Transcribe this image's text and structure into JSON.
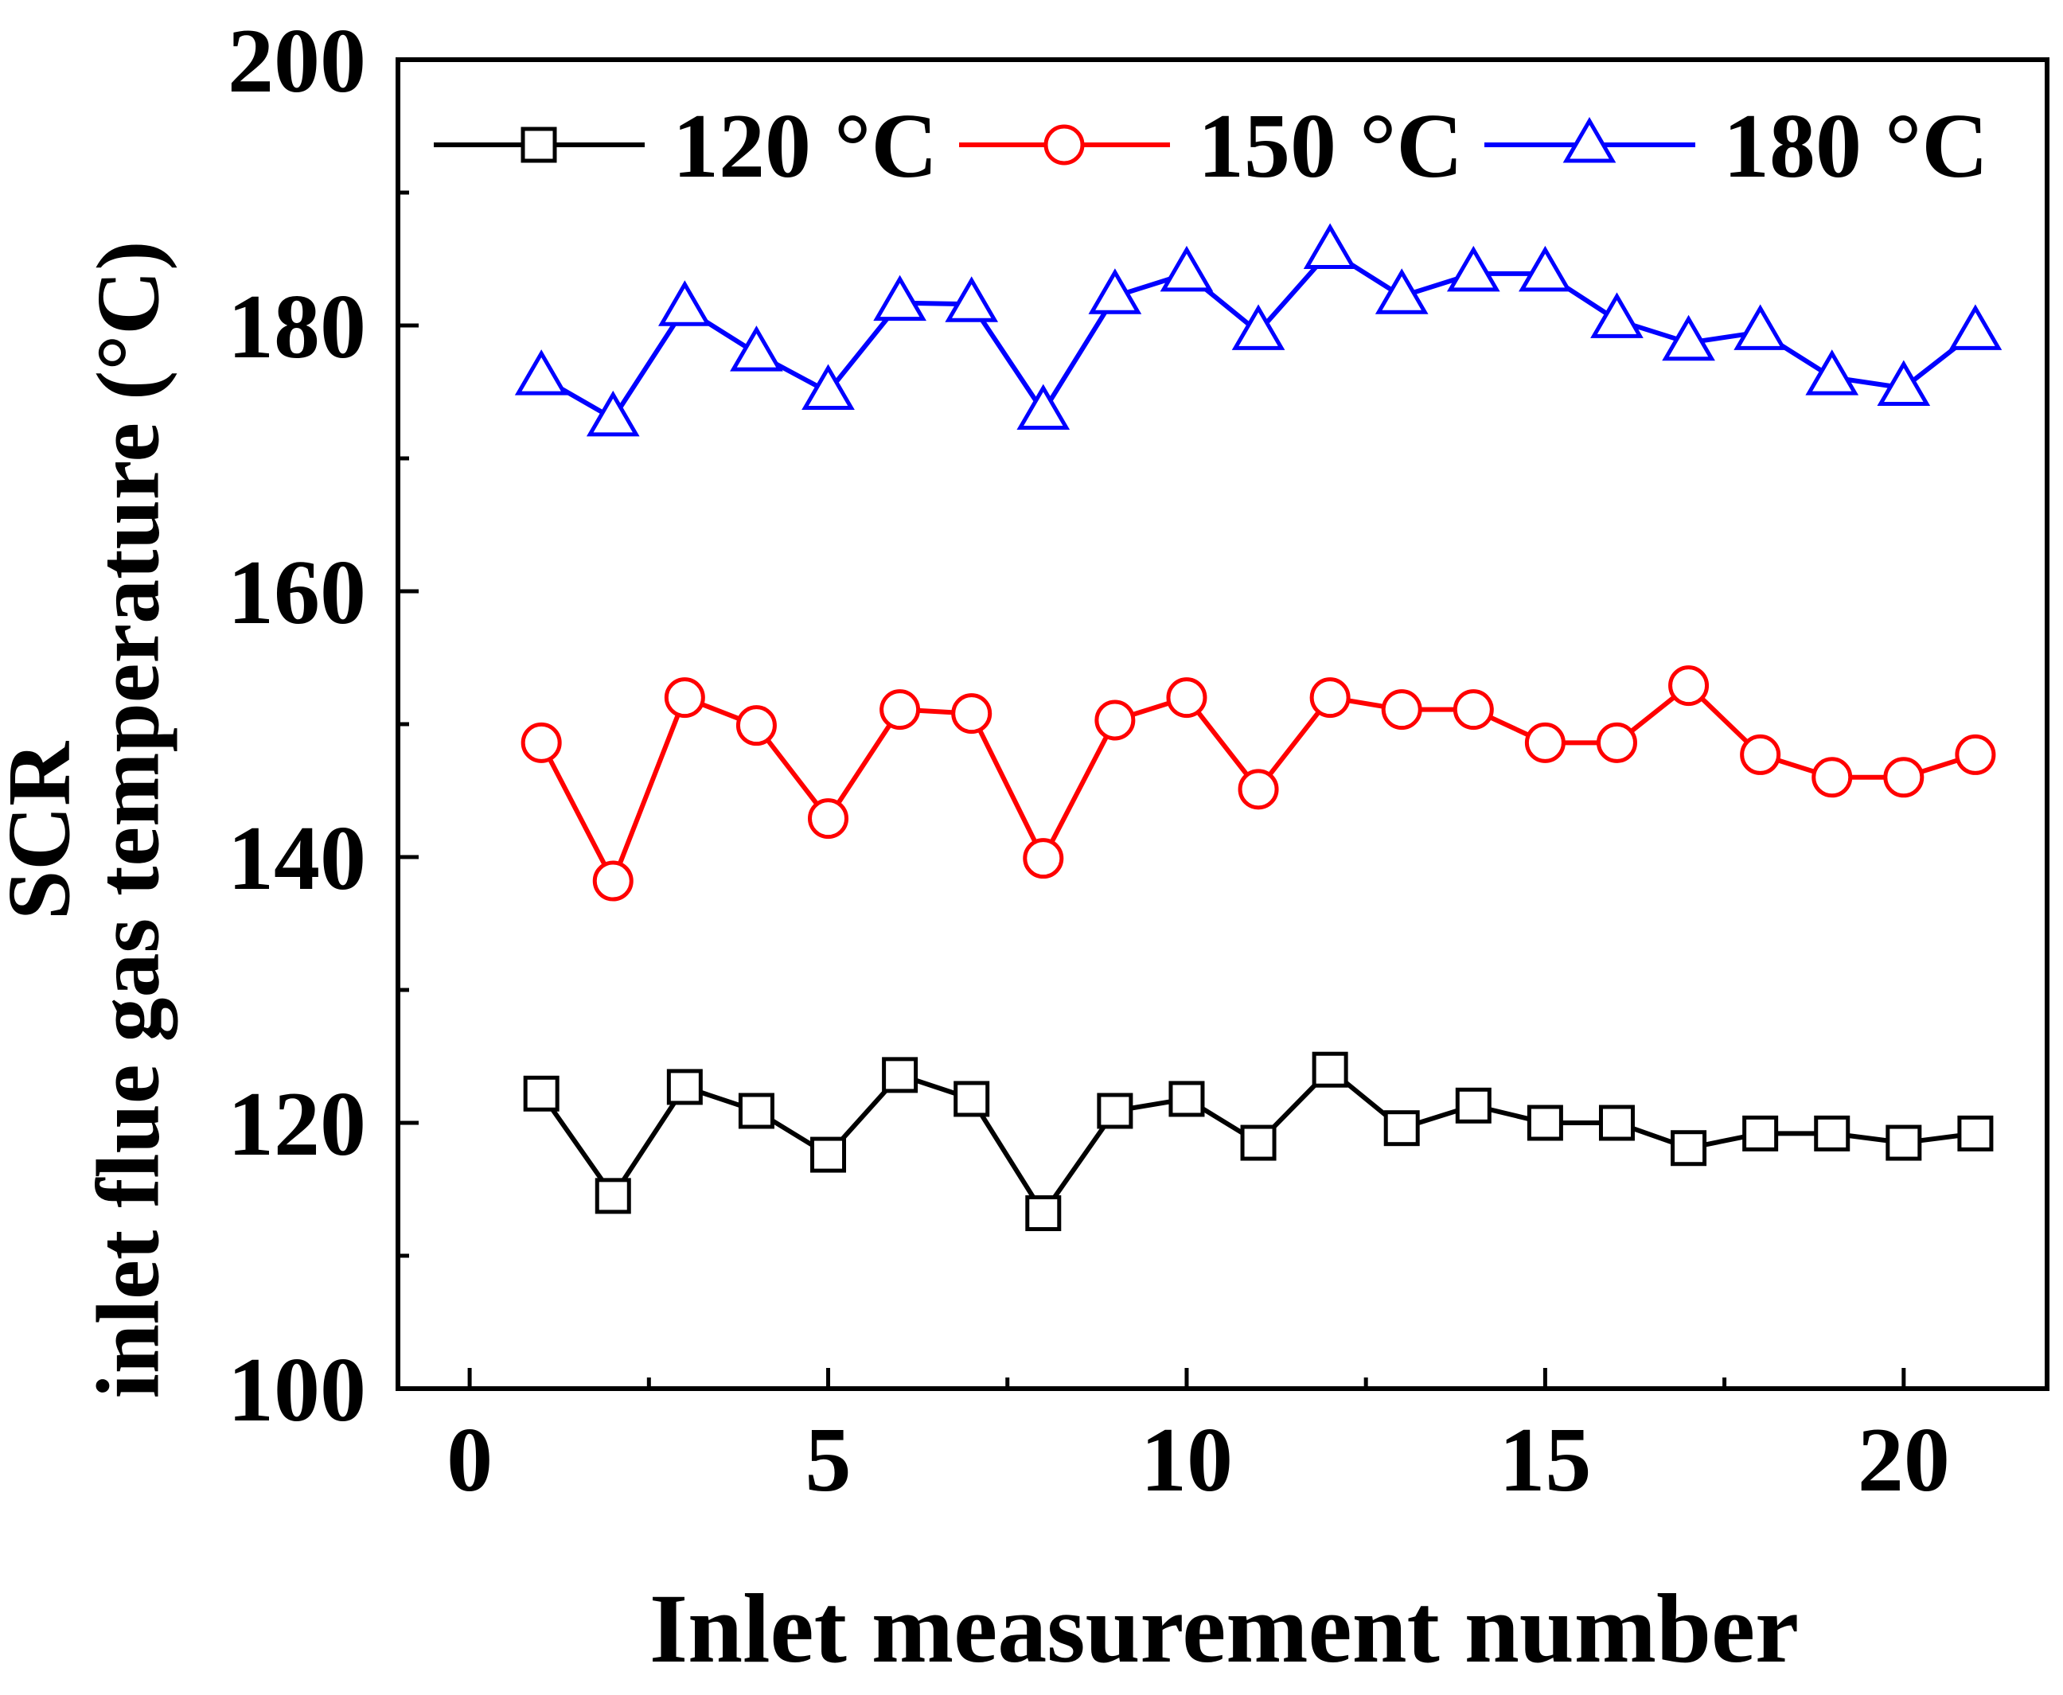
{
  "chart_data": {
    "type": "line",
    "title": "",
    "xlabel": "Inlet measurement number",
    "ylabel_lines": [
      "SCR",
      "inlet flue gas temperature (°C)"
    ],
    "xlim": [
      -1,
      22
    ],
    "ylim": [
      100,
      200
    ],
    "xticks": [
      0,
      5,
      10,
      15,
      20
    ],
    "xtick_labels": [
      "0",
      "5",
      "10",
      "15",
      "20"
    ],
    "yticks": [
      100,
      120,
      140,
      160,
      180,
      200
    ],
    "ytick_labels": [
      "100",
      "120",
      "140",
      "160",
      "180",
      "200"
    ],
    "grid": false,
    "legend_position": "top",
    "x": [
      1,
      2,
      3,
      4,
      5,
      6,
      7,
      8,
      9,
      10,
      11,
      12,
      13,
      14,
      15,
      16,
      17,
      18,
      19,
      20,
      21
    ],
    "series": [
      {
        "name": "120 °C",
        "color": "#000000",
        "marker": "square",
        "values": [
          122.2,
          114.5,
          122.7,
          120.9,
          117.6,
          123.6,
          121.8,
          113.2,
          120.9,
          121.8,
          118.5,
          124.0,
          119.6,
          121.3,
          120.0,
          120.0,
          118.1,
          119.2,
          119.2,
          118.5,
          119.2
        ]
      },
      {
        "name": "150 °C",
        "color": "#ff0000",
        "marker": "circle",
        "values": [
          148.6,
          138.2,
          152.0,
          149.9,
          142.9,
          151.1,
          150.8,
          139.9,
          150.3,
          152.0,
          145.1,
          152.0,
          151.1,
          151.1,
          148.6,
          148.6,
          152.9,
          147.7,
          146.0,
          146.0,
          147.7
        ]
      },
      {
        "name": "180 °C",
        "color": "#0000ff",
        "marker": "triangle",
        "values": [
          176.1,
          173.0,
          181.3,
          177.9,
          175.0,
          181.7,
          181.6,
          173.5,
          182.2,
          183.9,
          179.5,
          185.6,
          182.2,
          183.9,
          183.9,
          180.4,
          178.7,
          179.5,
          176.1,
          175.3,
          179.5
        ]
      }
    ]
  }
}
